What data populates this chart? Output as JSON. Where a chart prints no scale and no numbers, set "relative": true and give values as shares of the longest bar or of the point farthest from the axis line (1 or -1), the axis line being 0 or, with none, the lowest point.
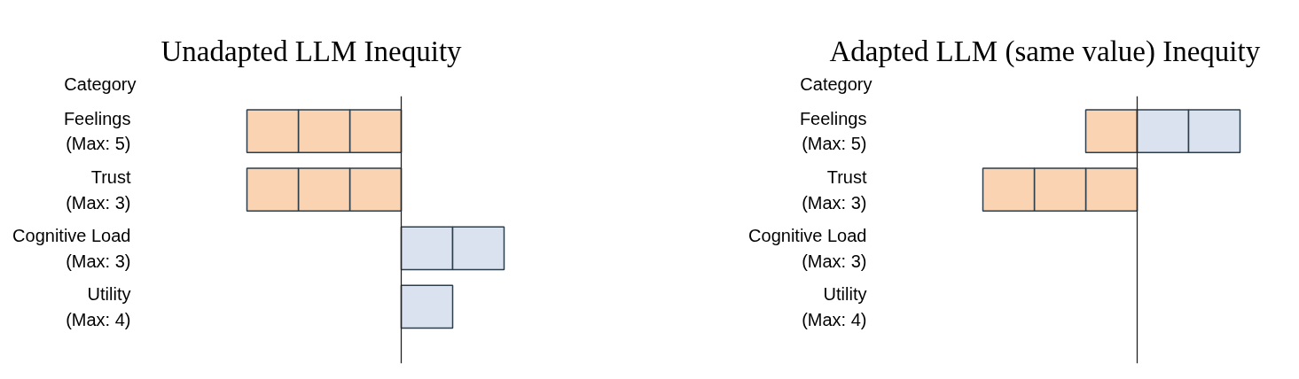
{
  "chart_data": [
    {
      "type": "bar",
      "orientation": "horizontal",
      "stacked": true,
      "relative": true,
      "tick_labels": "y",
      "title": "Unadapted LLM Inequity",
      "ylabel": "Category",
      "categories": [
        "Feelings\n(Max: 5)",
        "Trust\n(Max: 3)",
        "Cognitive Load\n(Max: 3)",
        "Utility\n(Max: 4)"
      ],
      "series": [
        {
          "color": "#fad3b3",
          "values": [
            -0.3333333333333333,
            -0.3333333333333333,
            null,
            null
          ]
        },
        {
          "color": "#fad3b3",
          "values": [
            -0.3333333333333333,
            -0.3333333333333333,
            null,
            null
          ]
        },
        {
          "color": "#fad3b3",
          "values": [
            -0.3333333333333333,
            -0.3333333333333333,
            null,
            null
          ]
        },
        {
          "color": "#dae2ef",
          "values": [
            null,
            null,
            0.3333333333333333,
            0.3333333333333333
          ]
        },
        {
          "color": "#dae2ef",
          "values": [
            null,
            null,
            0.3333333333333333,
            null
          ]
        }
      ]
    },
    {
      "type": "bar",
      "orientation": "horizontal",
      "stacked": true,
      "relative": true,
      "tick_labels": "y",
      "title": "Adapted LLM (same value) Inequity",
      "ylabel": "Category",
      "categories": [
        "Feelings\n(Max: 5)",
        "Trust\n(Max: 3)",
        "Cognitive Load\n(Max: 3)",
        "Utility\n(Max: 4)"
      ],
      "series": [
        {
          "color": "#fad3b3",
          "values": [
            -0.3333333333333333,
            -0.3333333333333333,
            null,
            null
          ]
        },
        {
          "color": "#fad3b3",
          "values": [
            null,
            -0.3333333333333333,
            null,
            null
          ]
        },
        {
          "color": "#fad3b3",
          "values": [
            null,
            -0.3333333333333333,
            null,
            null
          ]
        },
        {
          "color": "#dae2ef",
          "values": [
            0.3333333333333333,
            null,
            null,
            null
          ]
        },
        {
          "color": "#dae2ef",
          "values": [
            0.3333333333333333,
            null,
            null,
            null
          ]
        }
      ]
    }
  ]
}
